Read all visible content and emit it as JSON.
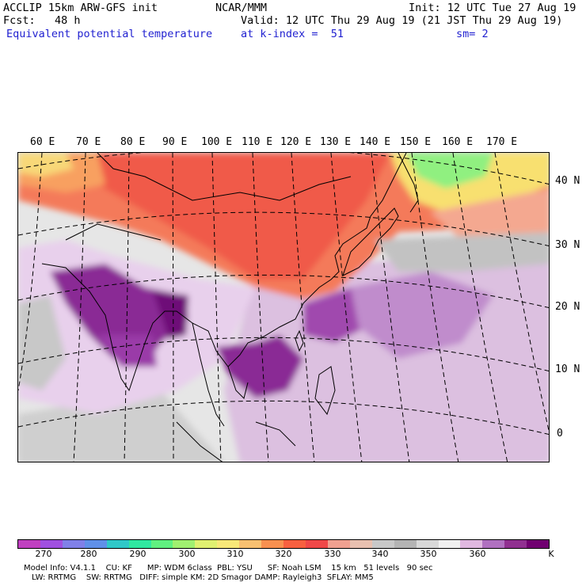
{
  "header": {
    "model": "ACCLIP 15km ARW-GFS init",
    "org": "NCAR/MMM",
    "init": "Init: 12 UTC Tue 27 Aug 19",
    "fcst": "Fcst:   48 h",
    "valid": "Valid: 12 UTC Thu 29 Aug 19 (21 JST Thu 29 Aug 19)",
    "field": "Equivalent potential temperature",
    "level": "at k-index =  51",
    "smooth": "sm= 2"
  },
  "map": {
    "lon_labels": [
      "60 E",
      "70 E",
      "80 E",
      "90 E",
      "100 E",
      "110 E",
      "120 E",
      "130 E",
      "140 E",
      "150 E",
      "160 E",
      "170 E"
    ],
    "lat_labels": [
      "40 N",
      "30 N",
      "20 N",
      "10 N",
      "0"
    ]
  },
  "colorbar": {
    "unit": "K",
    "tick_labels": [
      "270",
      "280",
      "290",
      "300",
      "310",
      "320",
      "330",
      "340",
      "350",
      "360"
    ],
    "colors": [
      "#c040c0",
      "#a050e0",
      "#8080e8",
      "#6090e8",
      "#30c8c8",
      "#30e8a0",
      "#60f080",
      "#a0f070",
      "#e0f070",
      "#f8e878",
      "#f8c070",
      "#f89050",
      "#f86040",
      "#f04848",
      "#f0a090",
      "#e8c0b0",
      "#c8c8c8",
      "#b4b4b4",
      "#d8d8d8",
      "#f0f0f0",
      "#e0b8e0",
      "#b070c0",
      "#903090",
      "#700070"
    ]
  },
  "footer": {
    "line1": "Model Info: V4.1.1    CU: KF      MP: WDM 6class  PBL: YSU      SF: Noah LSM    15 km   51 levels   90 sec",
    "line2": "LW: RRTMG    SW: RRTMG   DIFF: simple KM: 2D Smagor DAMP: Rayleigh3  SFLAY: MM5"
  }
}
